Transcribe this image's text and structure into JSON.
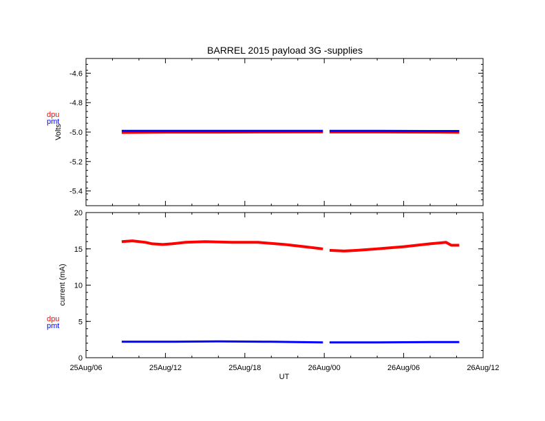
{
  "chart_data": [
    {
      "type": "line",
      "title": "BARREL 2015 payload 3G -supplies",
      "xlabel": "",
      "ylabel": "Volts",
      "ylim": [
        -5.5,
        -4.5
      ],
      "yticks": [
        "-4.6",
        "-4.8",
        "-5.0",
        "-5.2",
        "-5.4"
      ],
      "ytick_values": [
        -4.6,
        -4.8,
        -5.0,
        -5.2,
        -5.4
      ],
      "xlim_hours": [
        0,
        30
      ],
      "legend": [
        "dpu",
        "pmt"
      ],
      "series": [
        {
          "name": "dpu",
          "color": "#ff0000",
          "segments": [
            {
              "x": [
                2.7,
                6,
                10,
                14,
                17.9
              ],
              "y": [
                -5.005,
                -5.003,
                -5.003,
                -5.002,
                -5.001
              ]
            },
            {
              "x": [
                18.4,
                22,
                26,
                28.2
              ],
              "y": [
                -5.002,
                -5.002,
                -5.003,
                -5.004
              ]
            }
          ]
        },
        {
          "name": "pmt",
          "color": "#0000ff",
          "segments": [
            {
              "x": [
                2.7,
                6,
                10,
                14,
                17.9
              ],
              "y": [
                -4.992,
                -4.992,
                -4.992,
                -4.992,
                -4.992
              ]
            },
            {
              "x": [
                18.4,
                22,
                26,
                28.2
              ],
              "y": [
                -4.992,
                -4.992,
                -4.993,
                -4.993
              ]
            }
          ]
        }
      ]
    },
    {
      "type": "line",
      "title": "",
      "xlabel": "UT",
      "ylabel": "current (mA)",
      "ylim": [
        0,
        20
      ],
      "yticks": [
        "0",
        "5",
        "10",
        "15",
        "20"
      ],
      "ytick_values": [
        0,
        5,
        10,
        15,
        20
      ],
      "xlim_hours": [
        0,
        30
      ],
      "xticks": [
        "25Aug/06",
        "25Aug/12",
        "25Aug/18",
        "26Aug/00",
        "26Aug/06",
        "26Aug/12"
      ],
      "xtick_hours": [
        0,
        6,
        12,
        18,
        24,
        30
      ],
      "legend": [
        "dpu",
        "pmt"
      ],
      "series": [
        {
          "name": "dpu",
          "color": "#ff0000",
          "segments": [
            {
              "x": [
                2.7,
                3.5,
                4.5,
                5.0,
                5.8,
                6.5,
                7.5,
                9,
                11,
                13,
                15,
                16.5,
                17.9
              ],
              "y": [
                16.0,
                16.1,
                15.9,
                15.7,
                15.6,
                15.7,
                15.9,
                16.0,
                15.9,
                15.9,
                15.6,
                15.3,
                15.0
              ]
            },
            {
              "x": [
                18.4,
                19.5,
                20.5,
                22,
                24,
                26,
                27.2,
                27.6,
                28.2
              ],
              "y": [
                14.8,
                14.7,
                14.8,
                15.0,
                15.3,
                15.7,
                15.9,
                15.5,
                15.5
              ]
            }
          ]
        },
        {
          "name": "pmt",
          "color": "#0000ff",
          "segments": [
            {
              "x": [
                2.7,
                6,
                10,
                14,
                17.9
              ],
              "y": [
                2.2,
                2.2,
                2.25,
                2.2,
                2.1
              ]
            },
            {
              "x": [
                18.4,
                22,
                26,
                28.2
              ],
              "y": [
                2.1,
                2.1,
                2.15,
                2.15
              ]
            }
          ]
        }
      ]
    }
  ]
}
